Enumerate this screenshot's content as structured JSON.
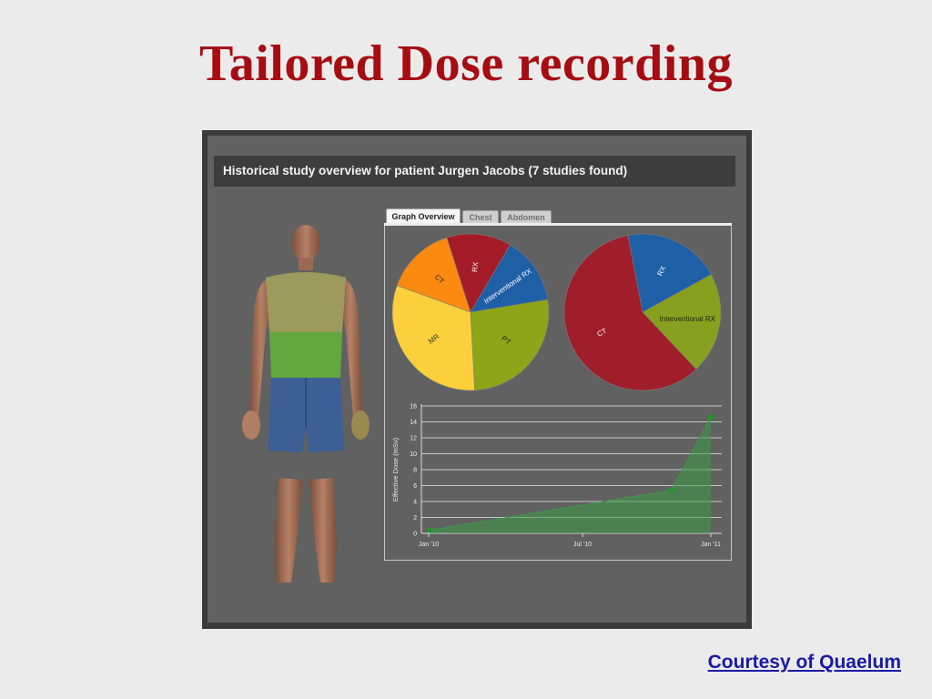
{
  "slide": {
    "title": "Tailored Dose recording",
    "courtesy_link": "Courtesy of Quaelum"
  },
  "app": {
    "header": "Historical study overview for patient Jurgen Jacobs (7 studies found)",
    "tabs": [
      {
        "label": "Graph Overview",
        "active": true
      },
      {
        "label": "Chest",
        "active": false
      },
      {
        "label": "Abdomen",
        "active": false
      }
    ],
    "body_model": {
      "highlight_colors": {
        "chest": "#9c9a5c",
        "abdomen": "#62a83e",
        "shorts": "#3d5f95"
      }
    }
  },
  "chart_data": [
    {
      "type": "pie",
      "categories": [
        "RX",
        "Interventional RX",
        "PT",
        "MR",
        "CT"
      ],
      "values": [
        11.5,
        12,
        23,
        27,
        12.5
      ],
      "colors": [
        "#a31c27",
        "#1f5fa6",
        "#8ea51a",
        "#fcd03c",
        "#fb8a10"
      ],
      "label_colors": [
        "#ffffff",
        "#ffffff",
        "#222222",
        "#333333",
        "#222222"
      ]
    },
    {
      "type": "pie",
      "categories": [
        "RX",
        "Interventional RX",
        "CT"
      ],
      "values": [
        20,
        21,
        59
      ],
      "colors": [
        "#1f5fa6",
        "#87a01f",
        "#a01d2a"
      ],
      "label_colors": [
        "#ffffff",
        "#222222",
        "#ffffff"
      ]
    },
    {
      "type": "area",
      "ylabel": "Effective Dose (mSv)",
      "ylim": [
        0,
        16
      ],
      "yticks": [
        "0",
        "2",
        "4",
        "6",
        "8",
        "10",
        "12",
        "14",
        "16"
      ],
      "xticks": [
        "Jan '10",
        "Jul '10",
        "Jan '11"
      ],
      "points": [
        {
          "date": "2010-01-03",
          "y": 0.4
        },
        {
          "date": "2010-11-05",
          "y": 5.4
        },
        {
          "date": "2010-12-25",
          "y": 14.6
        }
      ],
      "color": "#3d9a45"
    }
  ]
}
